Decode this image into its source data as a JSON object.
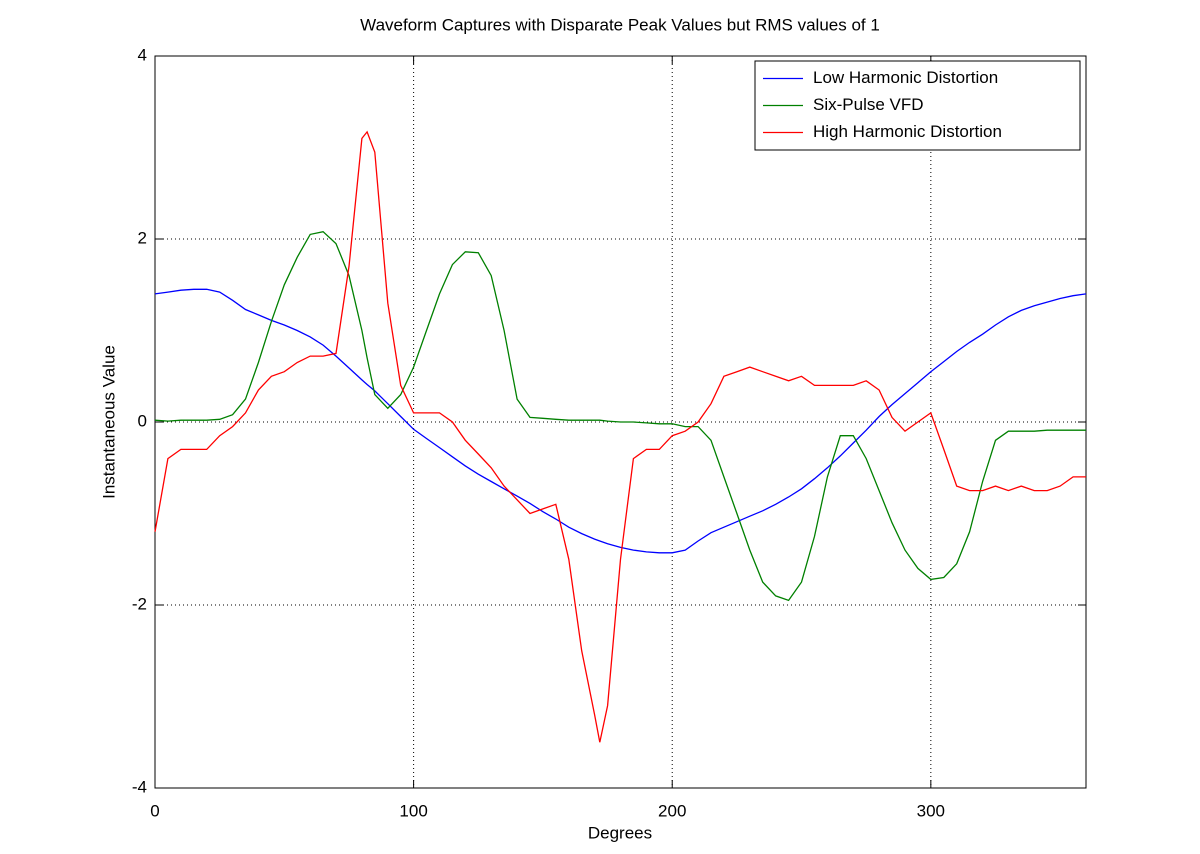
{
  "chart_data": {
    "type": "line",
    "title": "Waveform Captures with Disparate Peak Values but RMS values of 1",
    "x_label": "Degrees",
    "y_label": "Instantaneous Value",
    "x": [
      0,
      5,
      10,
      15,
      20,
      25,
      30,
      35,
      40,
      45,
      50,
      55,
      60,
      65,
      70,
      75,
      80,
      82,
      85,
      90,
      95,
      100,
      105,
      110,
      115,
      120,
      125,
      130,
      135,
      140,
      145,
      150,
      155,
      160,
      165,
      170,
      172,
      175,
      180,
      185,
      190,
      195,
      200,
      205,
      210,
      215,
      220,
      225,
      230,
      235,
      240,
      245,
      250,
      255,
      260,
      265,
      270,
      275,
      280,
      285,
      290,
      295,
      300,
      305,
      310,
      315,
      320,
      325,
      330,
      335,
      340,
      345,
      350,
      355,
      360
    ],
    "series": [
      {
        "name": "Low Harmonic Distortion",
        "color": "#0000ff",
        "values": [
          1.4,
          1.42,
          1.44,
          1.45,
          1.45,
          1.42,
          1.33,
          1.23,
          1.17,
          1.11,
          1.06,
          1.0,
          0.93,
          0.84,
          0.72,
          0.59,
          0.46,
          0.41,
          0.34,
          0.2,
          0.06,
          -0.08,
          -0.18,
          -0.28,
          -0.38,
          -0.48,
          -0.57,
          -0.65,
          -0.73,
          -0.81,
          -0.89,
          -0.98,
          -1.06,
          -1.15,
          -1.22,
          -1.28,
          -1.3,
          -1.33,
          -1.37,
          -1.4,
          -1.42,
          -1.43,
          -1.43,
          -1.4,
          -1.3,
          -1.21,
          -1.15,
          -1.09,
          -1.03,
          -0.97,
          -0.9,
          -0.82,
          -0.73,
          -0.62,
          -0.5,
          -0.37,
          -0.23,
          -0.09,
          0.06,
          0.19,
          0.31,
          0.43,
          0.55,
          0.66,
          0.77,
          0.87,
          0.96,
          1.06,
          1.15,
          1.22,
          1.27,
          1.31,
          1.35,
          1.38,
          1.4
        ]
      },
      {
        "name": "Six-Pulse VFD",
        "color": "#008000",
        "values": [
          0.02,
          0.01,
          0.02,
          0.02,
          0.02,
          0.03,
          0.08,
          0.25,
          0.65,
          1.1,
          1.5,
          1.8,
          2.05,
          2.08,
          1.95,
          1.6,
          1.0,
          0.7,
          0.3,
          0.15,
          0.3,
          0.6,
          1.0,
          1.4,
          1.72,
          1.86,
          1.85,
          1.6,
          1.0,
          0.25,
          0.05,
          0.04,
          0.03,
          0.02,
          0.02,
          0.02,
          0.02,
          0.01,
          0.0,
          0.0,
          -0.01,
          -0.02,
          -0.02,
          -0.05,
          -0.05,
          -0.2,
          -0.6,
          -1.0,
          -1.4,
          -1.75,
          -1.9,
          -1.95,
          -1.75,
          -1.25,
          -0.6,
          -0.15,
          -0.15,
          -0.4,
          -0.75,
          -1.1,
          -1.4,
          -1.6,
          -1.72,
          -1.7,
          -1.55,
          -1.2,
          -0.65,
          -0.2,
          -0.1,
          -0.1,
          -0.1,
          -0.09,
          -0.09,
          -0.09,
          -0.09
        ]
      },
      {
        "name": "High Harmonic Distortion",
        "color": "#ff0000",
        "values": [
          -1.2,
          -0.4,
          -0.3,
          -0.3,
          -0.3,
          -0.15,
          -0.05,
          0.1,
          0.35,
          0.5,
          0.55,
          0.65,
          0.72,
          0.72,
          0.75,
          1.7,
          3.1,
          3.17,
          2.95,
          1.3,
          0.4,
          0.1,
          0.1,
          0.1,
          0.0,
          -0.2,
          -0.35,
          -0.5,
          -0.7,
          -0.85,
          -1.0,
          -0.95,
          -0.9,
          -1.5,
          -2.5,
          -3.2,
          -3.5,
          -3.1,
          -1.5,
          -0.4,
          -0.3,
          -0.3,
          -0.15,
          -0.1,
          0.0,
          0.2,
          0.5,
          0.55,
          0.6,
          0.55,
          0.5,
          0.45,
          0.5,
          0.4,
          0.4,
          0.4,
          0.4,
          0.45,
          0.35,
          0.05,
          -0.1,
          0.0,
          0.1,
          -0.3,
          -0.7,
          -0.75,
          -0.75,
          -0.7,
          -0.75,
          -0.7,
          -0.75,
          -0.75,
          -0.7,
          -0.6,
          -0.6
        ]
      }
    ],
    "xlim": [
      0,
      360
    ],
    "xticks": [
      0,
      100,
      200,
      300
    ],
    "ylim": [
      -4,
      4
    ],
    "yticks": [
      -4,
      -2,
      0,
      2,
      4
    ],
    "grid": true,
    "legend": "upper right"
  }
}
